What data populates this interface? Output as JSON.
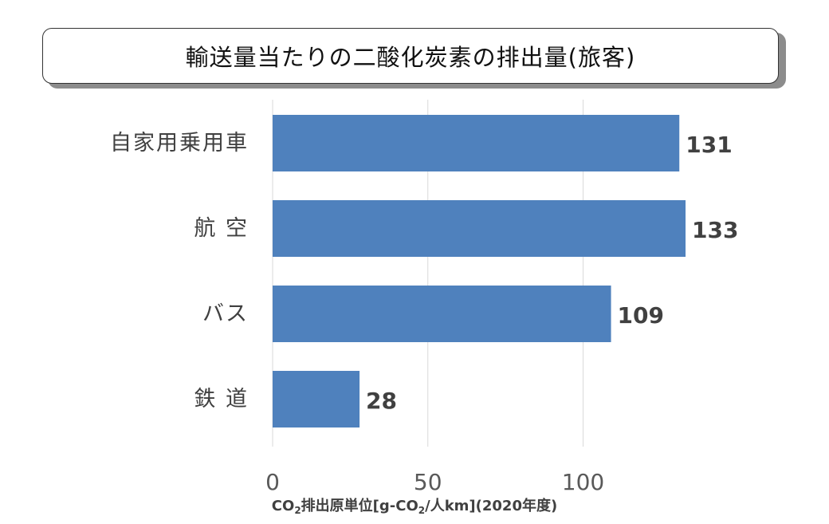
{
  "title": "輸送量当たりの二酸化炭素の排出量(旅客)",
  "chart_data": {
    "type": "bar",
    "orientation": "horizontal",
    "categories": [
      "自家用乗用車",
      "航 空",
      "バス",
      "鉄 道"
    ],
    "values": [
      131,
      133,
      109,
      28
    ],
    "xlabel": {
      "prefix": "CO",
      "sub1": "2",
      "middle": "排出原単位[g-CO",
      "sub2": "2",
      "suffix": "/人km](2020年度)"
    },
    "ticks": [
      "0",
      "50",
      "100"
    ],
    "xlim": [
      0,
      140
    ],
    "grid": true,
    "data_labels": true,
    "bar_color": "#4f81bd"
  }
}
